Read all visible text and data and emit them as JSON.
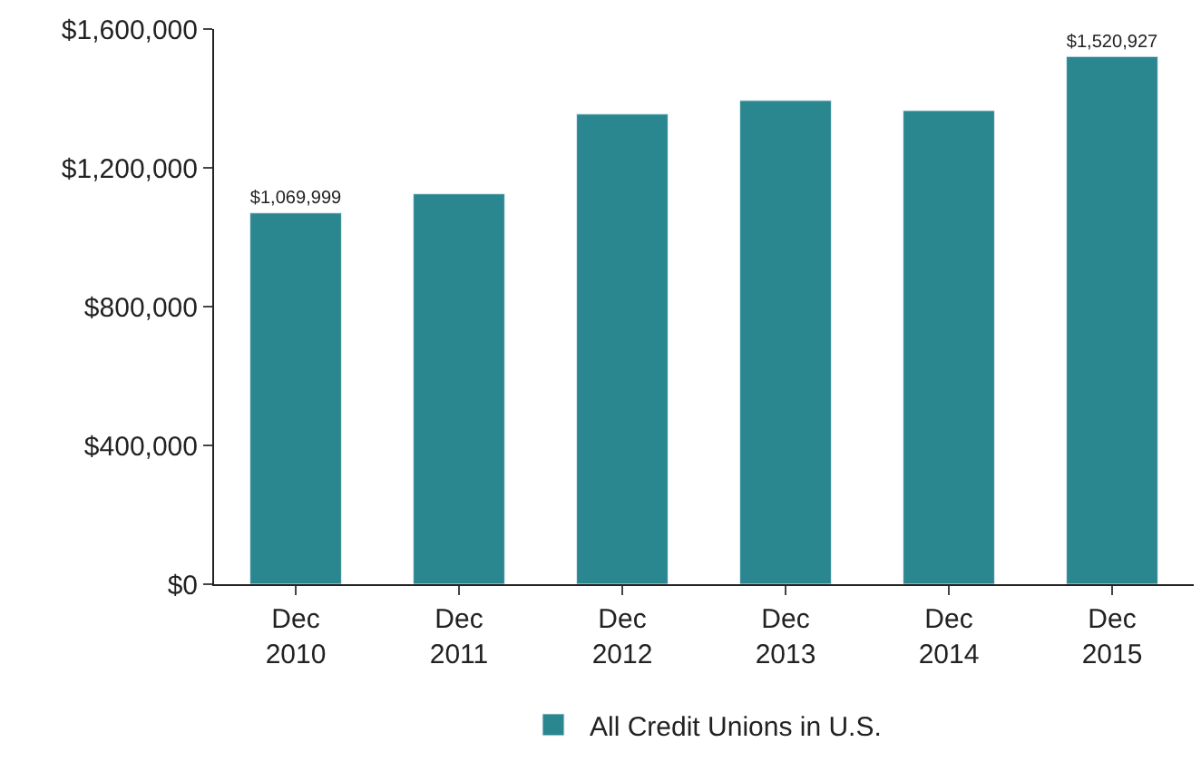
{
  "chart_data": {
    "type": "bar",
    "categories": [
      "Dec\n2010",
      "Dec\n2011",
      "Dec\n2012",
      "Dec\n2013",
      "Dec\n2014",
      "Dec\n2015"
    ],
    "series": [
      {
        "name": "All Credit Unions in U.S.",
        "color": "#2a8790",
        "values": [
          1069999,
          1125000,
          1355000,
          1394000,
          1365000,
          1520927
        ],
        "value_labels": [
          "$1,069,999",
          null,
          null,
          null,
          null,
          "$1,520,927"
        ]
      }
    ],
    "ylim": [
      0,
      1600000
    ],
    "yticks": [
      {
        "value": 0,
        "label": "$0"
      },
      {
        "value": 400000,
        "label": "$400,000"
      },
      {
        "value": 800000,
        "label": "$800,000"
      },
      {
        "value": 1200000,
        "label": "$1,200,000"
      },
      {
        "value": 1600000,
        "label": "$1,600,000"
      }
    ],
    "legend": "bottom"
  }
}
